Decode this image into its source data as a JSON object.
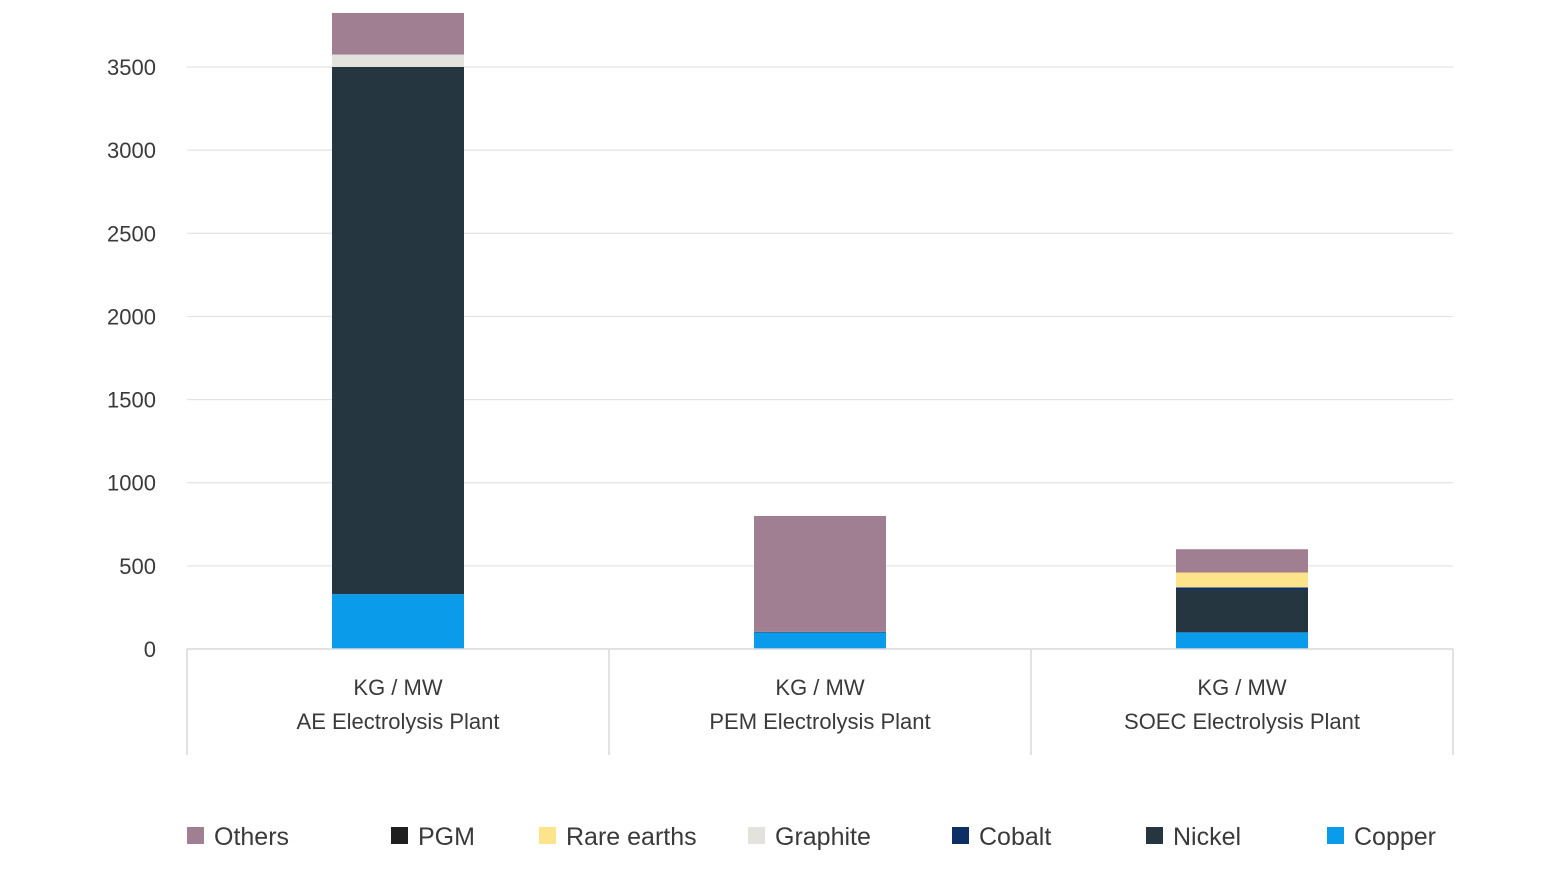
{
  "chart_data": {
    "type": "bar",
    "stacked": true,
    "title": "",
    "xlabel": "",
    "ylabel": "",
    "ylim": [
      0,
      3800
    ],
    "yticks": [
      0,
      500,
      1000,
      1500,
      2000,
      2500,
      3000,
      3500
    ],
    "grid": true,
    "legend_position": "bottom",
    "categories": [
      {
        "unit": "KG / MW",
        "name": "AE Electrolysis Plant"
      },
      {
        "unit": "KG / MW",
        "name": "PEM Electrolysis Plant"
      },
      {
        "unit": "KG / MW",
        "name": "SOEC Electrolysis Plant"
      }
    ],
    "series": [
      {
        "name": "Copper",
        "color": "#0a9ceb",
        "values": [
          330,
          100,
          100
        ]
      },
      {
        "name": "Nickel",
        "color": "#263640",
        "values": [
          3170,
          0,
          255
        ]
      },
      {
        "name": "Cobalt",
        "color": "#0d2f66",
        "values": [
          0,
          0,
          15
        ]
      },
      {
        "name": "Graphite",
        "color": "#e4e2dc",
        "values": [
          75,
          0,
          0
        ]
      },
      {
        "name": "Rare earths",
        "color": "#fde38a",
        "values": [
          0,
          0,
          90
        ]
      },
      {
        "name": "PGM",
        "color": "#1f1f1f",
        "values": [
          0,
          3,
          0
        ]
      },
      {
        "name": "Others",
        "color": "#a07f92",
        "values": [
          250,
          697,
          140
        ]
      }
    ],
    "legend_order": [
      "Others",
      "PGM",
      "Rare earths",
      "Graphite",
      "Cobalt",
      "Nickel",
      "Copper"
    ]
  }
}
